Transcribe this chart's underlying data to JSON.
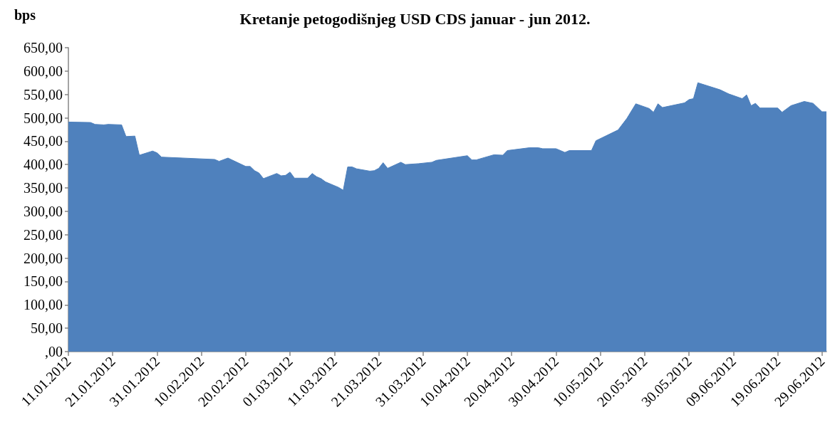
{
  "chart_data": {
    "type": "area",
    "title": "Kretanje petogodišnjeg USD CDS januar - jun 2012.",
    "ylabel": "bps",
    "color": "#4f81bd",
    "marker": "none",
    "x": [
      "2012-01-11",
      "2012-01-16",
      "2012-01-17",
      "2012-01-19",
      "2012-01-20",
      "2012-01-23",
      "2012-01-24",
      "2012-01-26",
      "2012-01-27",
      "2012-01-30",
      "2012-01-31",
      "2012-02-01",
      "2012-02-13",
      "2012-02-14",
      "2012-02-16",
      "2012-02-20",
      "2012-02-21",
      "2012-02-22",
      "2012-02-23",
      "2012-02-24",
      "2012-02-27",
      "2012-02-28",
      "2012-02-29",
      "2012-03-01",
      "2012-03-02",
      "2012-03-05",
      "2012-03-06",
      "2012-03-07",
      "2012-03-08",
      "2012-03-09",
      "2012-03-12",
      "2012-03-13",
      "2012-03-14",
      "2012-03-15",
      "2012-03-16",
      "2012-03-19",
      "2012-03-20",
      "2012-03-21",
      "2012-03-22",
      "2012-03-23",
      "2012-03-26",
      "2012-03-27",
      "2012-03-30",
      "2012-04-02",
      "2012-04-03",
      "2012-04-10",
      "2012-04-11",
      "2012-04-12",
      "2012-04-16",
      "2012-04-18",
      "2012-04-19",
      "2012-04-24",
      "2012-04-26",
      "2012-04-27",
      "2012-04-30",
      "2012-05-02",
      "2012-05-03",
      "2012-05-08",
      "2012-05-09",
      "2012-05-14",
      "2012-05-16",
      "2012-05-18",
      "2012-05-21",
      "2012-05-22",
      "2012-05-23",
      "2012-05-24",
      "2012-05-29",
      "2012-05-30",
      "2012-05-31",
      "2012-06-01",
      "2012-06-06",
      "2012-06-08",
      "2012-06-11",
      "2012-06-12",
      "2012-06-13",
      "2012-06-14",
      "2012-06-15",
      "2012-06-19",
      "2012-06-20",
      "2012-06-22",
      "2012-06-25",
      "2012-06-27",
      "2012-06-29",
      "2012-06-30"
    ],
    "values": [
      491,
      490,
      486,
      485,
      486,
      485,
      460,
      461,
      420,
      429,
      425,
      416,
      411,
      407,
      414,
      396,
      396,
      387,
      382,
      370,
      381,
      376,
      377,
      384,
      371,
      371,
      381,
      374,
      370,
      363,
      351,
      345,
      395,
      395,
      391,
      386,
      387,
      392,
      404,
      392,
      405,
      400,
      402,
      405,
      409,
      419,
      410,
      410,
      421,
      420,
      430,
      436,
      436,
      434,
      434,
      426,
      430,
      430,
      451,
      474,
      499,
      530,
      520,
      512,
      530,
      522,
      532,
      539,
      541,
      575,
      560,
      551,
      541,
      549,
      526,
      531,
      521,
      521,
      512,
      526,
      535,
      531,
      513,
      513
    ],
    "xlim": [
      "2012-01-11",
      "2012-06-30"
    ],
    "xticks": [
      {
        "value": "2012-01-11",
        "label": "11.01.2012"
      },
      {
        "value": "2012-01-21",
        "label": "21.01.2012"
      },
      {
        "value": "2012-01-31",
        "label": "31.01.2012"
      },
      {
        "value": "2012-02-10",
        "label": "10.02.2012"
      },
      {
        "value": "2012-02-20",
        "label": "20.02.2012"
      },
      {
        "value": "2012-03-01",
        "label": "01.03.2012"
      },
      {
        "value": "2012-03-11",
        "label": "11.03.2012"
      },
      {
        "value": "2012-03-21",
        "label": "21.03.2012"
      },
      {
        "value": "2012-03-31",
        "label": "31.03.2012"
      },
      {
        "value": "2012-04-10",
        "label": "10.04.2012"
      },
      {
        "value": "2012-04-20",
        "label": "20.04.2012"
      },
      {
        "value": "2012-04-30",
        "label": "30.04.2012"
      },
      {
        "value": "2012-05-10",
        "label": "10.05.2012"
      },
      {
        "value": "2012-05-20",
        "label": "20.05.2012"
      },
      {
        "value": "2012-05-30",
        "label": "30.05.2012"
      },
      {
        "value": "2012-06-09",
        "label": "09.06.2012"
      },
      {
        "value": "2012-06-19",
        "label": "19.06.2012"
      },
      {
        "value": "2012-06-29",
        "label": "29.06.2012"
      }
    ],
    "ylim": [
      0,
      650
    ],
    "yticks": [
      {
        "value": 0,
        "label": ",00"
      },
      {
        "value": 50,
        "label": "50,00"
      },
      {
        "value": 100,
        "label": "100,00"
      },
      {
        "value": 150,
        "label": "150,00"
      },
      {
        "value": 200,
        "label": "200,00"
      },
      {
        "value": 250,
        "label": "250,00"
      },
      {
        "value": 300,
        "label": "300,00"
      },
      {
        "value": 350,
        "label": "350,00"
      },
      {
        "value": 400,
        "label": "400,00"
      },
      {
        "value": 450,
        "label": "450,00"
      },
      {
        "value": 500,
        "label": "500,00"
      },
      {
        "value": 550,
        "label": "550,00"
      },
      {
        "value": 600,
        "label": "600,00"
      },
      {
        "value": 650,
        "label": "650,00"
      }
    ]
  }
}
